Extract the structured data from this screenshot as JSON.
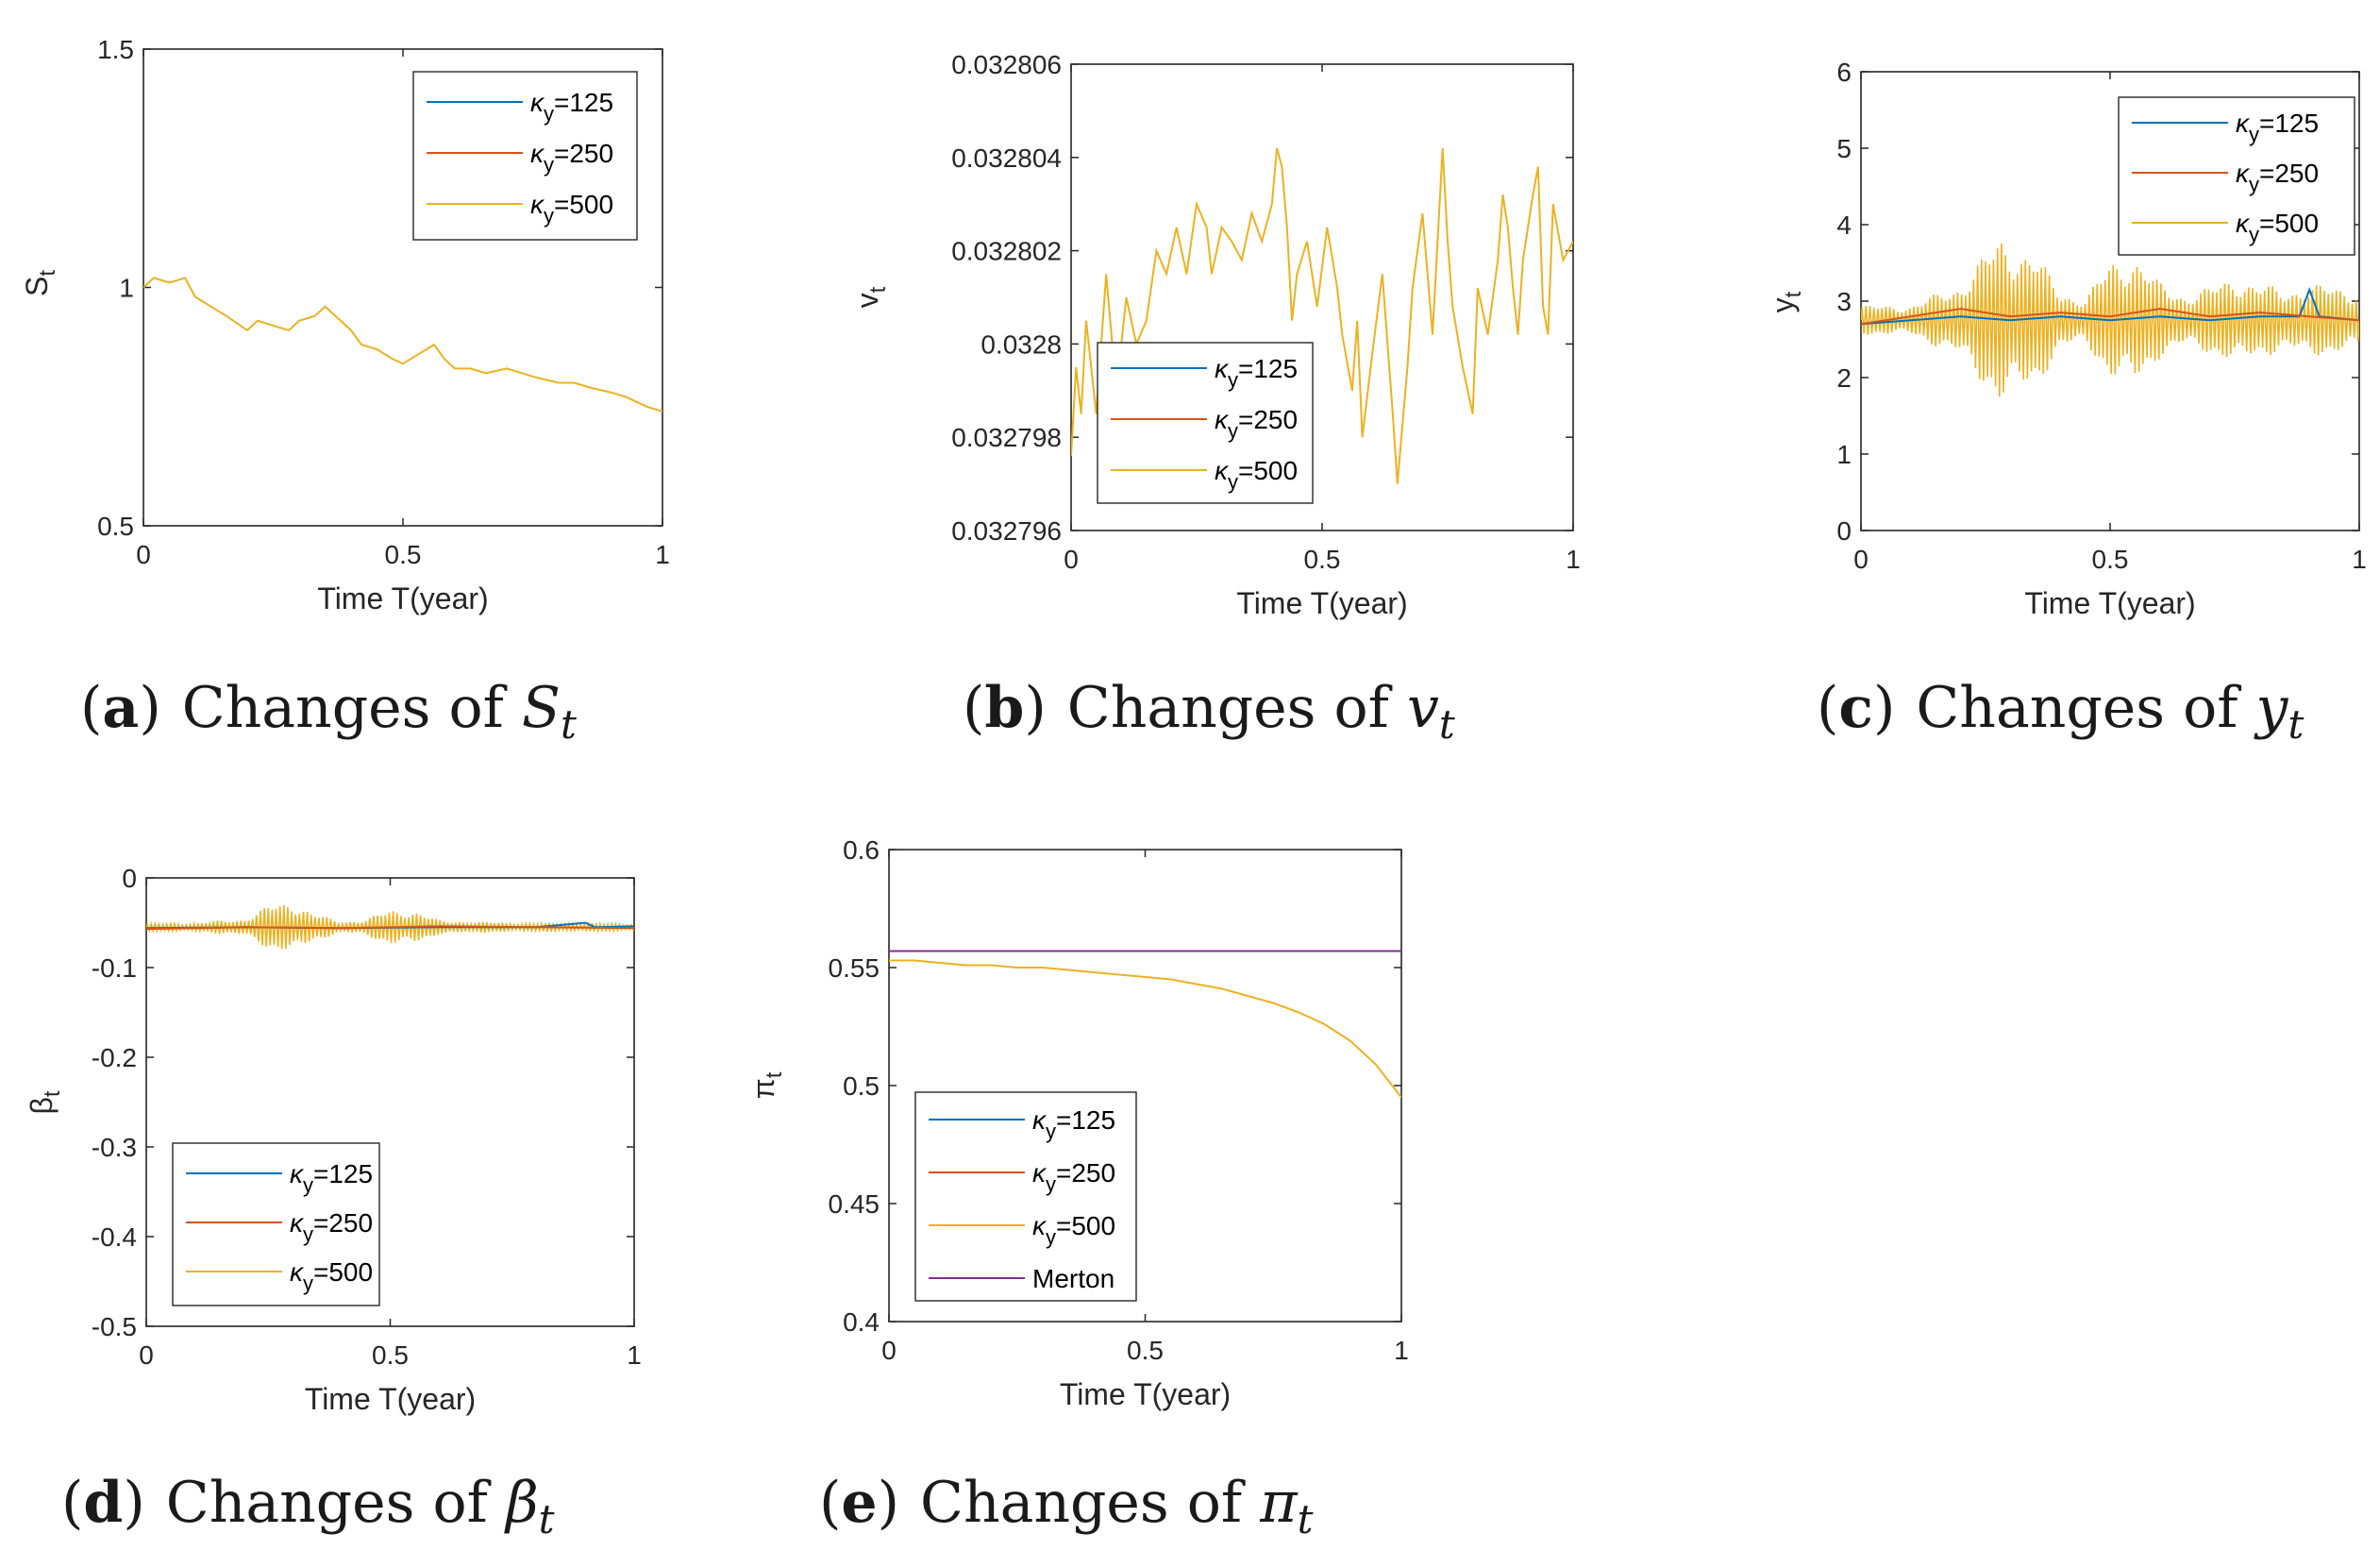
{
  "colors": {
    "k125": "#0072BD",
    "k250": "#D95319",
    "k500": "#EDB120",
    "merton": "#7E2F8E",
    "axis": "#262626"
  },
  "chart_data": [
    {
      "id": "a",
      "type": "line",
      "caption_letter": "a",
      "caption_text": "Changes of ",
      "caption_var": "S",
      "caption_sub": "t",
      "xlabel": "Time T(year)",
      "ylabel": "S",
      "ylabel_sub": "t",
      "xlim": [
        0,
        1
      ],
      "ylim": [
        0.5,
        1.5
      ],
      "xticks": [
        0,
        0.5,
        1
      ],
      "xtick_labels": [
        "0",
        "0.5",
        "1"
      ],
      "yticks": [
        0.5,
        1,
        1.5
      ],
      "ytick_labels": [
        "0.5",
        "1",
        "1.5"
      ],
      "legend_position": "top-right",
      "legend": [
        {
          "symbol": "κ",
          "sub": "y",
          "suffix": "=125",
          "color_key": "k125"
        },
        {
          "symbol": "κ",
          "sub": "y",
          "suffix": "=250",
          "color_key": "k250"
        },
        {
          "symbol": "κ",
          "sub": "y",
          "suffix": "=500",
          "color_key": "k500"
        }
      ],
      "series": [
        {
          "name": "κy=500",
          "color_key": "k500",
          "x": [
            0,
            0.02,
            0.05,
            0.08,
            0.1,
            0.13,
            0.16,
            0.2,
            0.22,
            0.25,
            0.28,
            0.3,
            0.33,
            0.35,
            0.38,
            0.4,
            0.42,
            0.45,
            0.48,
            0.5,
            0.53,
            0.56,
            0.58,
            0.6,
            0.63,
            0.66,
            0.7,
            0.73,
            0.76,
            0.8,
            0.83,
            0.86,
            0.9,
            0.93,
            0.95,
            0.97,
            1.0
          ],
          "y": [
            1.0,
            1.02,
            1.01,
            1.02,
            0.98,
            0.96,
            0.94,
            0.91,
            0.93,
            0.92,
            0.91,
            0.93,
            0.94,
            0.96,
            0.93,
            0.91,
            0.88,
            0.87,
            0.85,
            0.84,
            0.86,
            0.88,
            0.85,
            0.83,
            0.83,
            0.82,
            0.83,
            0.82,
            0.81,
            0.8,
            0.8,
            0.79,
            0.78,
            0.77,
            0.76,
            0.75,
            0.74
          ]
        }
      ]
    },
    {
      "id": "b",
      "type": "line",
      "caption_letter": "b",
      "caption_text": "Changes of ",
      "caption_var": "v",
      "caption_sub": "t",
      "xlabel": "Time T(year)",
      "ylabel": "v",
      "ylabel_sub": "t",
      "xlim": [
        0,
        1
      ],
      "ylim": [
        0.032796,
        0.032806
      ],
      "xticks": [
        0,
        0.5,
        1
      ],
      "xtick_labels": [
        "0",
        "0.5",
        "1"
      ],
      "yticks": [
        0.032796,
        0.032798,
        0.0328,
        0.032802,
        0.032804,
        0.032806
      ],
      "ytick_labels": [
        "0.032796",
        "0.032798",
        "0.0328",
        "0.032802",
        "0.032804",
        "0.032806"
      ],
      "legend_position": "bottom-left",
      "legend": [
        {
          "symbol": "κ",
          "sub": "y",
          "suffix": "=125",
          "color_key": "k125"
        },
        {
          "symbol": "κ",
          "sub": "y",
          "suffix": "=250",
          "color_key": "k250"
        },
        {
          "symbol": "κ",
          "sub": "y",
          "suffix": "=500",
          "color_key": "k500"
        }
      ],
      "series": [
        {
          "name": "κy=500",
          "color_key": "k500",
          "x": [
            0,
            0.01,
            0.02,
            0.03,
            0.05,
            0.07,
            0.09,
            0.11,
            0.13,
            0.15,
            0.17,
            0.19,
            0.21,
            0.23,
            0.25,
            0.27,
            0.28,
            0.3,
            0.32,
            0.34,
            0.36,
            0.38,
            0.4,
            0.41,
            0.42,
            0.43,
            0.44,
            0.45,
            0.47,
            0.49,
            0.51,
            0.53,
            0.54,
            0.56,
            0.57,
            0.58,
            0.6,
            0.62,
            0.64,
            0.65,
            0.67,
            0.68,
            0.7,
            0.72,
            0.74,
            0.75,
            0.76,
            0.78,
            0.8,
            0.81,
            0.83,
            0.85,
            0.86,
            0.87,
            0.88,
            0.89,
            0.9,
            0.92,
            0.93,
            0.94,
            0.95,
            0.96,
            0.98,
            1.0
          ],
          "y": [
            0.0327976,
            0.0327995,
            0.0327985,
            0.0328005,
            0.0327985,
            0.0328015,
            0.032799,
            0.032801,
            0.0328,
            0.0328005,
            0.032802,
            0.0328015,
            0.0328025,
            0.0328015,
            0.032803,
            0.0328025,
            0.0328015,
            0.0328025,
            0.0328022,
            0.0328018,
            0.0328028,
            0.0328022,
            0.032803,
            0.0328042,
            0.0328038,
            0.0328025,
            0.0328005,
            0.0328015,
            0.0328022,
            0.0328008,
            0.0328025,
            0.0328012,
            0.0328002,
            0.032799,
            0.0328005,
            0.032798,
            0.0327998,
            0.0328015,
            0.0327986,
            0.032797,
            0.0327995,
            0.0328012,
            0.0328028,
            0.0328002,
            0.0328042,
            0.0328022,
            0.0328008,
            0.0327995,
            0.0327985,
            0.0328012,
            0.0328002,
            0.0328018,
            0.0328032,
            0.0328025,
            0.0328012,
            0.0328002,
            0.0328018,
            0.0328032,
            0.0328038,
            0.0328008,
            0.0328002,
            0.032803,
            0.0328018,
            0.0328022
          ]
        }
      ]
    },
    {
      "id": "c",
      "type": "line",
      "caption_letter": "c",
      "caption_text": "Changes of ",
      "caption_var": "y",
      "caption_sub": "t",
      "xlabel": "Time T(year)",
      "ylabel": "y",
      "ylabel_sub": "t",
      "xlim": [
        0,
        1
      ],
      "ylim": [
        0,
        6
      ],
      "xticks": [
        0,
        0.5,
        1
      ],
      "xtick_labels": [
        "0",
        "0.5",
        "1"
      ],
      "yticks": [
        0,
        1,
        2,
        3,
        4,
        5,
        6
      ],
      "ytick_labels": [
        "0",
        "1",
        "2",
        "3",
        "4",
        "5",
        "6"
      ],
      "legend_position": "top-right",
      "legend": [
        {
          "symbol": "κ",
          "sub": "y",
          "suffix": "=125",
          "color_key": "k125"
        },
        {
          "symbol": "κ",
          "sub": "y",
          "suffix": "=250",
          "color_key": "k250"
        },
        {
          "symbol": "κ",
          "sub": "y",
          "suffix": "=500",
          "color_key": "k500"
        }
      ],
      "oscillation": {
        "center": 2.75,
        "period": 0.008,
        "envelope_x": [
          0,
          0.1,
          0.2,
          0.28,
          0.35,
          0.4,
          0.45,
          0.5,
          0.55,
          0.6,
          0.65,
          0.7,
          0.75,
          0.8,
          0.85,
          0.9,
          0.95,
          1.0
        ],
        "envelope_amp": [
          0.2,
          0.2,
          0.5,
          1.15,
          0.9,
          0.4,
          0.3,
          0.8,
          0.9,
          0.5,
          0.35,
          0.45,
          0.6,
          0.5,
          0.4,
          0.5,
          0.45,
          0.4
        ]
      },
      "series": [
        {
          "name": "κy=125",
          "color_key": "k125",
          "x": [
            0,
            0.1,
            0.2,
            0.3,
            0.4,
            0.5,
            0.6,
            0.7,
            0.8,
            0.88,
            0.9,
            0.92,
            1.0
          ],
          "y": [
            2.7,
            2.75,
            2.8,
            2.75,
            2.8,
            2.75,
            2.8,
            2.75,
            2.8,
            2.8,
            3.15,
            2.8,
            2.75
          ]
        },
        {
          "name": "κy=250",
          "color_key": "k250",
          "x": [
            0,
            0.1,
            0.2,
            0.3,
            0.4,
            0.5,
            0.6,
            0.7,
            0.8,
            0.9,
            1.0
          ],
          "y": [
            2.7,
            2.8,
            2.9,
            2.8,
            2.85,
            2.8,
            2.9,
            2.8,
            2.85,
            2.8,
            2.75
          ]
        }
      ]
    },
    {
      "id": "d",
      "type": "line",
      "caption_letter": "d",
      "caption_text": "Changes of ",
      "caption_var": "β",
      "caption_sub": "t",
      "xlabel": "Time T(year)",
      "ylabel": "β",
      "ylabel_sub": "t",
      "xlim": [
        0,
        1
      ],
      "ylim": [
        -0.5,
        0
      ],
      "xticks": [
        0,
        0.5,
        1
      ],
      "xtick_labels": [
        "0",
        "0.5",
        "1"
      ],
      "yticks": [
        -0.5,
        -0.4,
        -0.3,
        -0.2,
        -0.1,
        0
      ],
      "ytick_labels": [
        "-0.5",
        "-0.4",
        "-0.3",
        "-0.2",
        "-0.1",
        "0"
      ],
      "legend_position": "bottom-left",
      "legend": [
        {
          "symbol": "κ",
          "sub": "y",
          "suffix": "=125",
          "color_key": "k125"
        },
        {
          "symbol": "κ",
          "sub": "y",
          "suffix": "=250",
          "color_key": "k250"
        },
        {
          "symbol": "κ",
          "sub": "y",
          "suffix": "=500",
          "color_key": "k500"
        }
      ],
      "oscillation": {
        "center": -0.055,
        "period": 0.008,
        "envelope_x": [
          0,
          0.1,
          0.2,
          0.25,
          0.3,
          0.35,
          0.4,
          0.45,
          0.5,
          0.55,
          0.6,
          0.7,
          0.8,
          0.9,
          1.0
        ],
        "envelope_amp": [
          0.004,
          0.005,
          0.01,
          0.025,
          0.03,
          0.015,
          0.006,
          0.01,
          0.02,
          0.02,
          0.008,
          0.006,
          0.005,
          0.005,
          0.004
        ]
      },
      "series": [
        {
          "name": "κy=125",
          "color_key": "k125",
          "x": [
            0,
            0.2,
            0.4,
            0.6,
            0.8,
            0.9,
            0.92,
            1.0
          ],
          "y": [
            -0.056,
            -0.055,
            -0.056,
            -0.055,
            -0.055,
            -0.05,
            -0.055,
            -0.054
          ]
        },
        {
          "name": "κy=250",
          "color_key": "k250",
          "x": [
            0,
            0.2,
            0.4,
            0.6,
            0.8,
            1.0
          ],
          "y": [
            -0.057,
            -0.055,
            -0.056,
            -0.054,
            -0.055,
            -0.056
          ]
        }
      ]
    },
    {
      "id": "e",
      "type": "line",
      "caption_letter": "e",
      "caption_text": "Changes of ",
      "caption_var": "π",
      "caption_sub": "t",
      "xlabel": "Time T(year)",
      "ylabel": "π",
      "ylabel_sub": "t",
      "xlim": [
        0,
        1
      ],
      "ylim": [
        0.4,
        0.6
      ],
      "xticks": [
        0,
        0.5,
        1
      ],
      "xtick_labels": [
        "0",
        "0.5",
        "1"
      ],
      "yticks": [
        0.4,
        0.45,
        0.5,
        0.55,
        0.6
      ],
      "ytick_labels": [
        "0.4",
        "0.45",
        "0.5",
        "0.55",
        "0.6"
      ],
      "legend_position": "bottom-left",
      "legend": [
        {
          "symbol": "κ",
          "sub": "y",
          "suffix": "=125",
          "color_key": "k125"
        },
        {
          "symbol": "κ",
          "sub": "y",
          "suffix": "=250",
          "color_key": "k250"
        },
        {
          "symbol": "κ",
          "sub": "y",
          "suffix": "=500",
          "color_key": "k500"
        },
        {
          "symbol": "",
          "sub": "",
          "suffix": "Merton",
          "color_key": "merton"
        }
      ],
      "series": [
        {
          "name": "κy=500",
          "color_key": "k500",
          "x": [
            0,
            0.05,
            0.1,
            0.15,
            0.2,
            0.25,
            0.3,
            0.35,
            0.4,
            0.45,
            0.5,
            0.55,
            0.6,
            0.65,
            0.7,
            0.75,
            0.8,
            0.85,
            0.9,
            0.95,
            1.0
          ],
          "y": [
            0.553,
            0.553,
            0.552,
            0.551,
            0.551,
            0.55,
            0.55,
            0.549,
            0.548,
            0.547,
            0.546,
            0.545,
            0.543,
            0.541,
            0.538,
            0.535,
            0.531,
            0.526,
            0.519,
            0.509,
            0.495
          ]
        },
        {
          "name": "Merton",
          "color_key": "merton",
          "x": [
            0,
            1
          ],
          "y": [
            0.557,
            0.557
          ]
        }
      ]
    }
  ]
}
